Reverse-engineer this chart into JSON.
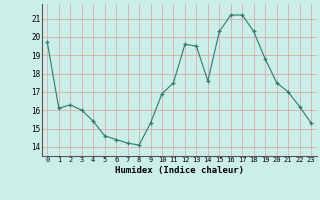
{
  "x": [
    0,
    1,
    2,
    3,
    4,
    5,
    6,
    7,
    8,
    9,
    10,
    11,
    12,
    13,
    14,
    15,
    16,
    17,
    18,
    19,
    20,
    21,
    22,
    23
  ],
  "y": [
    19.7,
    16.1,
    16.3,
    16.0,
    15.4,
    14.6,
    14.4,
    14.2,
    14.1,
    15.3,
    16.9,
    17.5,
    19.6,
    19.5,
    17.6,
    20.3,
    21.2,
    21.2,
    20.3,
    18.8,
    17.5,
    17.0,
    16.2,
    15.3
  ],
  "xlabel": "Humidex (Indice chaleur)",
  "ylabel": "",
  "title": "",
  "bg_color": "#cceee8",
  "grid_color": "#ffaaaa",
  "line_color": "#2d7a6e",
  "marker_color": "#2d7a6e",
  "ylim": [
    13.5,
    21.8
  ],
  "yticks": [
    14,
    15,
    16,
    17,
    18,
    19,
    20,
    21
  ],
  "xticks": [
    0,
    1,
    2,
    3,
    4,
    5,
    6,
    7,
    8,
    9,
    10,
    11,
    12,
    13,
    14,
    15,
    16,
    17,
    18,
    19,
    20,
    21,
    22,
    23
  ],
  "xtick_labels": [
    "0",
    "1",
    "2",
    "3",
    "4",
    "5",
    "6",
    "7",
    "8",
    "9",
    "10",
    "11",
    "12",
    "13",
    "14",
    "15",
    "16",
    "17",
    "18",
    "19",
    "20",
    "21",
    "22",
    "23"
  ]
}
